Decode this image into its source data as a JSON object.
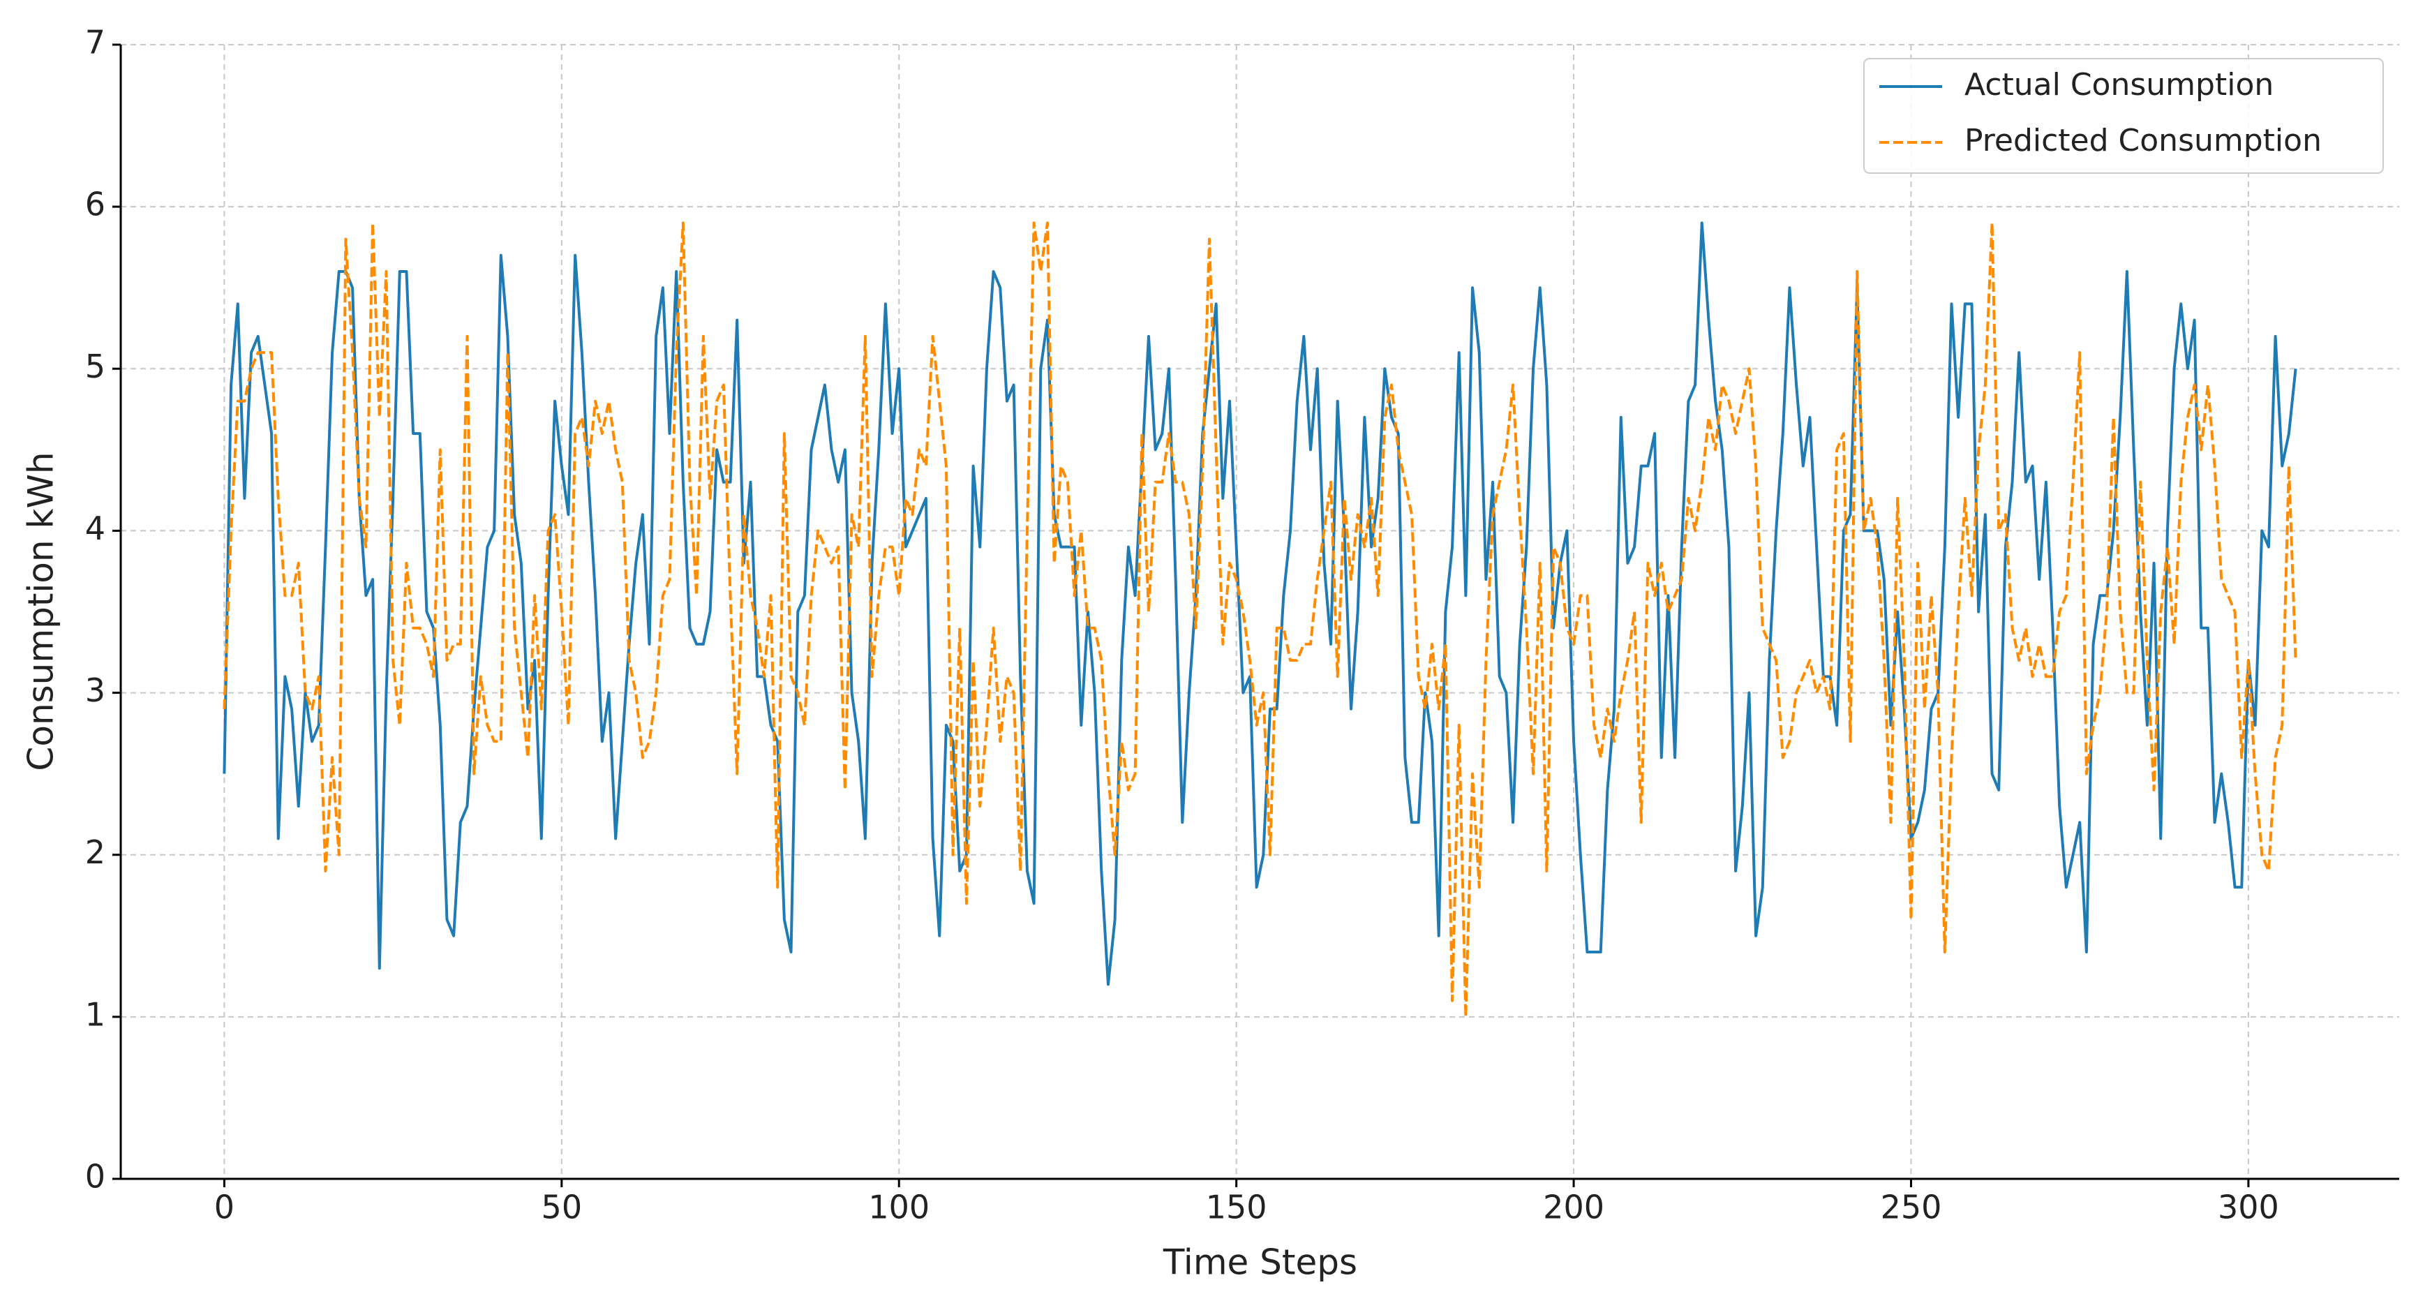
{
  "chart_data": {
    "type": "line",
    "x_label": "Time Steps",
    "y_label": "Consumption kWh",
    "xlim": [
      -15.35,
      322.35
    ],
    "xticks": [
      0,
      50,
      100,
      150,
      200,
      250,
      300
    ],
    "ylim": [
      0,
      7
    ],
    "yticks": [
      0,
      1,
      2,
      3,
      4,
      5,
      6,
      7
    ],
    "grid": true,
    "legend": "upper right",
    "x": [
      0,
      1,
      2,
      3,
      4,
      5,
      6,
      7,
      8,
      9,
      10,
      11,
      12,
      13,
      14,
      15,
      16,
      17,
      18,
      19,
      20,
      21,
      22,
      23,
      24,
      25,
      26,
      27,
      28,
      29,
      30,
      31,
      32,
      33,
      34,
      35,
      36,
      37,
      38,
      39,
      40,
      41,
      42,
      43,
      44,
      45,
      46,
      47,
      48,
      49,
      50,
      51,
      52,
      53,
      54,
      55,
      56,
      57,
      58,
      59,
      60,
      61,
      62,
      63,
      64,
      65,
      66,
      67,
      68,
      69,
      70,
      71,
      72,
      73,
      74,
      75,
      76,
      77,
      78,
      79,
      80,
      81,
      82,
      83,
      84,
      85,
      86,
      87,
      88,
      89,
      90,
      91,
      92,
      93,
      94,
      95,
      96,
      97,
      98,
      99,
      100,
      101,
      102,
      103,
      104,
      105,
      106,
      107,
      108,
      109,
      110,
      111,
      112,
      113,
      114,
      115,
      116,
      117,
      118,
      119,
      120,
      121,
      122,
      123,
      124,
      125,
      126,
      127,
      128,
      129,
      130,
      131,
      132,
      133,
      134,
      135,
      136,
      137,
      138,
      139,
      140,
      141,
      142,
      143,
      144,
      145,
      146,
      147,
      148,
      149,
      150,
      151,
      152,
      153,
      154,
      155,
      156,
      157,
      158,
      159,
      160,
      161,
      162,
      163,
      164,
      165,
      166,
      167,
      168,
      169,
      170,
      171,
      172,
      173,
      174,
      175,
      176,
      177,
      178,
      179,
      180,
      181,
      182,
      183,
      184,
      185,
      186,
      187,
      188,
      189,
      190,
      191,
      192,
      193,
      194,
      195,
      196,
      197,
      198,
      199,
      200,
      201,
      202,
      203,
      204,
      205,
      206,
      207,
      208,
      209,
      210,
      211,
      212,
      213,
      214,
      215,
      216,
      217,
      218,
      219,
      220,
      221,
      222,
      223,
      224,
      225,
      226,
      227,
      228,
      229,
      230,
      231,
      232,
      233,
      234,
      235,
      236,
      237,
      238,
      239,
      240,
      241,
      242,
      243,
      244,
      245,
      246,
      247,
      248,
      249,
      250,
      251,
      252,
      253,
      254,
      255,
      256,
      257,
      258,
      259,
      260,
      261,
      262,
      263,
      264,
      265,
      266,
      267,
      268,
      269,
      270,
      271,
      272,
      273,
      274,
      275,
      276,
      277,
      278,
      279,
      280,
      281,
      282,
      283,
      284,
      285,
      286,
      287,
      288,
      289,
      290,
      291,
      292,
      293,
      294,
      295,
      296,
      297,
      298,
      299,
      300,
      301,
      302,
      303,
      304,
      305,
      306,
      307
    ],
    "series": [
      {
        "name": "Actual Consumption",
        "color": "#1f7bb4",
        "dash": false,
        "values": [
          2.5,
          4.9,
          5.4,
          4.2,
          5.1,
          5.2,
          4.9,
          4.6,
          2.1,
          3.1,
          2.9,
          2.3,
          3.0,
          2.7,
          2.8,
          3.9,
          5.1,
          5.6,
          5.6,
          5.5,
          4.2,
          3.6,
          3.7,
          1.3,
          3.0,
          4.2,
          5.6,
          5.6,
          4.6,
          4.6,
          3.5,
          3.4,
          2.8,
          1.6,
          1.5,
          2.2,
          2.3,
          2.9,
          3.4,
          3.9,
          4.0,
          5.7,
          5.2,
          4.1,
          3.8,
          2.9,
          3.2,
          2.1,
          3.6,
          4.8,
          4.4,
          4.1,
          5.7,
          5.1,
          4.3,
          3.6,
          2.7,
          3.0,
          2.1,
          2.7,
          3.3,
          3.8,
          4.1,
          3.3,
          5.2,
          5.5,
          4.6,
          5.6,
          4.3,
          3.4,
          3.3,
          3.3,
          3.5,
          4.5,
          4.3,
          4.3,
          5.3,
          3.8,
          4.3,
          3.1,
          3.1,
          2.8,
          2.7,
          1.6,
          1.4,
          3.5,
          3.6,
          4.5,
          4.7,
          4.9,
          4.5,
          4.3,
          4.5,
          3.0,
          2.7,
          2.1,
          3.8,
          4.5,
          5.4,
          4.6,
          5.0,
          3.9,
          4.0,
          4.1,
          4.2,
          2.1,
          1.5,
          2.8,
          2.7,
          1.9,
          2.0,
          4.4,
          3.9,
          5.0,
          5.6,
          5.5,
          4.8,
          4.9,
          3.1,
          1.9,
          1.7,
          5.0,
          5.3,
          4.1,
          3.9,
          3.9,
          3.9,
          2.8,
          3.5,
          3.0,
          1.9,
          1.2,
          1.6,
          3.2,
          3.9,
          3.6,
          4.4,
          5.2,
          4.5,
          4.6,
          5.0,
          3.7,
          2.2,
          3.0,
          3.6,
          4.6,
          5.0,
          5.4,
          4.2,
          4.8,
          3.9,
          3.0,
          3.1,
          1.8,
          2.0,
          2.9,
          2.9,
          3.6,
          4.0,
          4.8,
          5.2,
          4.5,
          5.0,
          3.8,
          3.3,
          4.8,
          4.0,
          2.9,
          3.5,
          4.7,
          3.9,
          4.2,
          5.0,
          4.7,
          4.6,
          2.6,
          2.2,
          2.2,
          3.0,
          2.7,
          1.5,
          3.5,
          3.9,
          5.1,
          3.6,
          5.5,
          5.1,
          3.7,
          4.3,
          3.1,
          3.0,
          2.2,
          3.3,
          3.9,
          5.0,
          5.5,
          4.9,
          3.4,
          3.8,
          4.0,
          2.7,
          2.0,
          1.4,
          1.4,
          1.4,
          2.4,
          2.9,
          4.7,
          3.8,
          3.9,
          4.4,
          4.4,
          4.6,
          2.6,
          3.6,
          2.6,
          3.9,
          4.8,
          4.9,
          5.9,
          5.3,
          4.8,
          4.5,
          3.9,
          1.9,
          2.3,
          3.0,
          1.5,
          1.8,
          3.2,
          4.0,
          4.6,
          5.5,
          4.9,
          4.4,
          4.7,
          3.9,
          3.1,
          3.1,
          2.8,
          4.0,
          4.1,
          5.5,
          4.0,
          4.0,
          4.0,
          3.7,
          2.8,
          3.5,
          2.9,
          2.1,
          2.2,
          2.4,
          2.9,
          3.0,
          3.9,
          5.4,
          4.7,
          5.4,
          5.4,
          3.5,
          4.1,
          2.5,
          2.4,
          3.9,
          4.3,
          5.1,
          4.3,
          4.4,
          3.7,
          4.3,
          3.4,
          2.3,
          1.8,
          2.0,
          2.2,
          1.4,
          3.3,
          3.6,
          3.6,
          4.0,
          4.7,
          5.6,
          4.5,
          3.5,
          2.8,
          3.8,
          2.1,
          4.0,
          5.0,
          5.4,
          5.0,
          5.3,
          3.4,
          3.4,
          2.2,
          2.5,
          2.2,
          1.8,
          1.8,
          3.2,
          2.8,
          4.0,
          3.9,
          5.2,
          4.4,
          4.6,
          5.0
        ]
      },
      {
        "name": "Predicted Consumption",
        "color": "#ff8c00",
        "dash": true,
        "values": [
          2.9,
          4.0,
          4.8,
          4.8,
          5.0,
          5.1,
          5.1,
          5.1,
          4.2,
          3.6,
          3.6,
          3.8,
          3.0,
          2.9,
          3.1,
          1.9,
          2.6,
          2.0,
          5.8,
          5.1,
          4.2,
          3.9,
          5.9,
          4.7,
          5.6,
          3.2,
          2.8,
          3.8,
          3.4,
          3.4,
          3.3,
          3.1,
          4.5,
          3.2,
          3.3,
          3.3,
          5.2,
          2.5,
          3.1,
          2.8,
          2.7,
          2.7,
          5.1,
          3.4,
          3.0,
          2.6,
          3.6,
          2.9,
          4.0,
          4.1,
          3.5,
          2.8,
          4.6,
          4.7,
          4.4,
          4.8,
          4.6,
          4.8,
          4.5,
          4.3,
          3.2,
          3.0,
          2.6,
          2.7,
          3.0,
          3.6,
          3.7,
          5.1,
          5.9,
          4.3,
          3.6,
          5.2,
          4.2,
          4.8,
          4.9,
          3.6,
          2.5,
          4.1,
          3.6,
          3.4,
          3.1,
          3.6,
          1.8,
          4.6,
          3.1,
          3.0,
          2.8,
          3.6,
          4.0,
          3.9,
          3.8,
          3.9,
          2.4,
          4.1,
          3.9,
          5.2,
          3.1,
          3.6,
          3.9,
          3.9,
          3.6,
          4.2,
          4.1,
          4.5,
          4.4,
          5.2,
          4.8,
          4.4,
          2.0,
          3.4,
          1.7,
          3.2,
          2.3,
          2.8,
          3.4,
          2.7,
          3.1,
          3.0,
          1.9,
          4.0,
          5.9,
          5.6,
          5.9,
          3.8,
          4.4,
          4.3,
          3.6,
          4.0,
          3.4,
          3.4,
          3.2,
          2.5,
          2.0,
          2.7,
          2.4,
          2.5,
          4.6,
          3.5,
          4.3,
          4.3,
          4.6,
          4.3,
          4.3,
          4.1,
          3.4,
          4.4,
          5.8,
          4.5,
          3.3,
          3.8,
          3.7,
          3.5,
          3.2,
          2.8,
          3.0,
          2.0,
          3.4,
          3.4,
          3.2,
          3.2,
          3.3,
          3.3,
          3.7,
          4.0,
          4.3,
          3.1,
          4.2,
          3.7,
          4.1,
          3.9,
          4.2,
          3.6,
          4.7,
          4.9,
          4.5,
          4.3,
          4.1,
          3.1,
          2.9,
          3.3,
          2.9,
          3.3,
          1.1,
          2.8,
          1.0,
          2.5,
          1.8,
          3.2,
          4.1,
          4.3,
          4.5,
          4.9,
          4.1,
          3.4,
          2.5,
          3.8,
          1.9,
          3.9,
          3.8,
          3.4,
          3.3,
          3.6,
          3.6,
          2.8,
          2.6,
          2.9,
          2.7,
          3.0,
          3.2,
          3.5,
          2.2,
          3.8,
          3.6,
          3.8,
          3.5,
          3.6,
          3.7,
          4.2,
          4.0,
          4.3,
          4.7,
          4.5,
          4.9,
          4.8,
          4.6,
          4.8,
          5.0,
          4.4,
          3.4,
          3.3,
          3.2,
          2.6,
          2.7,
          3.0,
          3.1,
          3.2,
          3.0,
          3.1,
          2.9,
          4.5,
          4.6,
          2.7,
          5.6,
          4.0,
          4.2,
          3.9,
          3.2,
          2.2,
          4.2,
          3.2,
          1.6,
          3.8,
          2.9,
          3.6,
          3.0,
          1.4,
          2.6,
          3.5,
          4.2,
          3.6,
          4.5,
          4.9,
          5.9,
          4.0,
          4.1,
          3.4,
          3.2,
          3.4,
          3.1,
          3.3,
          3.1,
          3.1,
          3.5,
          3.6,
          4.3,
          5.1,
          2.5,
          2.8,
          3.0,
          3.5,
          4.7,
          3.5,
          3.0,
          3.0,
          4.3,
          3.2,
          2.4,
          3.5,
          3.9,
          3.3,
          4.3,
          4.7,
          4.9,
          4.5,
          4.9,
          4.4,
          3.7,
          3.6,
          3.5,
          2.6,
          3.2,
          2.5,
          2.0,
          1.9,
          2.6,
          2.8,
          4.4,
          3.2
        ]
      }
    ]
  }
}
